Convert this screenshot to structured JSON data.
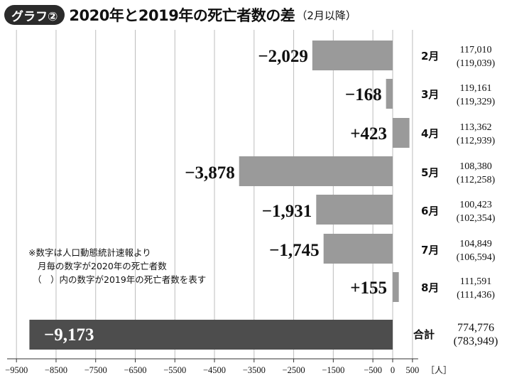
{
  "header": {
    "badge": "グラフ②",
    "title": "2020年と2019年の死亡者数の差",
    "subtitle": "（2月以降）"
  },
  "note": {
    "line1": "※数字は人口動態統計速報より",
    "line2": "月毎の数字が2020年の死亡者数",
    "line3": "（　）内の数字が2019年の死亡者数を表す"
  },
  "colors": {
    "bar": "#9a9a9a",
    "bar_total": "#4d4d4d",
    "grid": "#bdbdbd",
    "text": "#111111"
  },
  "chart_data": {
    "type": "bar",
    "orientation": "horizontal",
    "categories": [
      "2月",
      "3月",
      "4月",
      "5月",
      "6月",
      "7月",
      "8月",
      "合計"
    ],
    "values": [
      -2029,
      -168,
      423,
      -3878,
      -1931,
      -1745,
      155,
      -9173
    ],
    "data_labels": [
      "−2,029",
      "−168",
      "+423",
      "−3,878",
      "−1,931",
      "−1,745",
      "+155",
      "−9,173"
    ],
    "deaths_2020": [
      "117,010",
      "119,161",
      "113,362",
      "108,380",
      "100,423",
      "104,849",
      "111,591",
      "774,776"
    ],
    "deaths_2019": [
      "(119,039)",
      "(119,329)",
      "(112,939)",
      "(112,258)",
      "(102,354)",
      "(106,594)",
      "(111,436)",
      "(783,949)"
    ],
    "xlim": [
      -9500,
      500
    ],
    "xticks": [
      -9500,
      -8500,
      -7500,
      -6500,
      -5500,
      -4500,
      -3500,
      -2500,
      -1500,
      -500,
      0,
      500
    ],
    "xtick_labels": [
      "−9500",
      "−8500",
      "−7500",
      "−6500",
      "−5500",
      "−4500",
      "−3500",
      "−2500",
      "−1500",
      "−500",
      "0",
      "500"
    ],
    "unit_label": "［人］",
    "grid": true
  }
}
